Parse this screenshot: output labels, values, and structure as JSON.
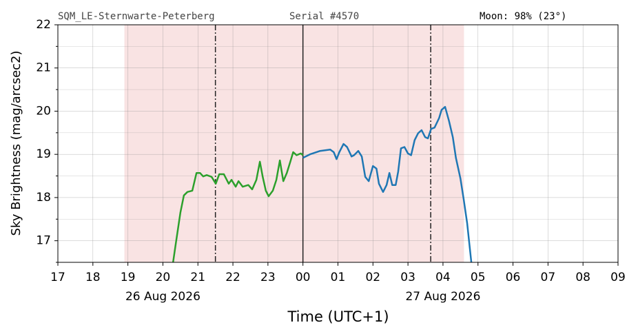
{
  "chart_data": {
    "type": "line",
    "header_left": "SQM_LE-Sternwarte-Peterberg",
    "header_center": "Serial #4570",
    "header_right": "Moon: 98% (23°)",
    "ylabel": "Sky Brightness (mag/arcsec2)",
    "xlabel": "Time (UTC+1)",
    "xlim": [
      17,
      33
    ],
    "ylim": [
      16.5,
      22
    ],
    "xticks": [
      17,
      18,
      19,
      20,
      21,
      22,
      23,
      {
        "value": 24,
        "label": "00"
      },
      {
        "value": 25,
        "label": "01"
      },
      {
        "value": 26,
        "label": "02"
      },
      {
        "value": 27,
        "label": "03"
      },
      {
        "value": 28,
        "label": "04"
      },
      {
        "value": 29,
        "label": "05"
      },
      {
        "value": 30,
        "label": "06"
      },
      {
        "value": 31,
        "label": "07"
      },
      {
        "value": 32,
        "label": "08"
      },
      {
        "value": 33,
        "label": "09"
      }
    ],
    "yticks": [
      17,
      18,
      19,
      20,
      21,
      22
    ],
    "yminor_ticks": [
      16.5,
      17.5,
      18.5,
      19.5,
      20.5,
      21.5
    ],
    "date_labels": [
      {
        "x": 20,
        "text": "26 Aug 2026"
      },
      {
        "x": 28,
        "text": "27 Aug 2026"
      }
    ],
    "grid": true,
    "shaded_region": [
      18.9,
      28.6
    ],
    "shade_color": "#f9e3e3",
    "dashdot_lines": [
      21.5,
      27.65
    ],
    "solid_lines": [
      24
    ],
    "series": [
      {
        "color": "#2ca02c",
        "x": [
          20.29,
          20.37,
          20.5,
          20.6,
          20.7,
          20.84,
          20.96,
          21.06,
          21.15,
          21.25,
          21.39,
          21.51,
          21.61,
          21.74,
          21.88,
          21.96,
          22.08,
          22.16,
          22.28,
          22.44,
          22.55,
          22.67,
          22.77,
          22.85,
          22.94,
          23.02,
          23.14,
          23.24,
          23.34,
          23.44,
          23.54,
          23.64,
          23.72,
          23.82,
          23.94,
          24.0
        ],
        "values": [
          16.5,
          16.94,
          17.65,
          18.05,
          18.13,
          18.16,
          18.57,
          18.57,
          18.49,
          18.52,
          18.48,
          18.32,
          18.54,
          18.54,
          18.32,
          18.41,
          18.25,
          18.38,
          18.25,
          18.29,
          18.19,
          18.41,
          18.83,
          18.48,
          18.16,
          18.03,
          18.16,
          18.41,
          18.86,
          18.38,
          18.57,
          18.83,
          19.05,
          18.98,
          19.02,
          18.98
        ]
      },
      {
        "color": "#1f77b4",
        "x": [
          24.0,
          24.2,
          24.49,
          24.78,
          24.88,
          24.96,
          25.04,
          25.16,
          25.26,
          25.39,
          25.46,
          25.58,
          25.68,
          25.78,
          25.88,
          26.0,
          26.1,
          26.17,
          26.29,
          26.39,
          26.47,
          26.55,
          26.65,
          26.72,
          26.8,
          26.9,
          27.0,
          27.09,
          27.19,
          27.29,
          27.39,
          27.49,
          27.57,
          27.66,
          27.76,
          27.89,
          27.96,
          28.06,
          28.17,
          28.28,
          28.37,
          28.5,
          28.59,
          28.69,
          28.81
        ],
        "values": [
          18.92,
          19.0,
          19.08,
          19.11,
          19.05,
          18.89,
          19.05,
          19.24,
          19.17,
          18.95,
          18.98,
          19.08,
          18.95,
          18.48,
          18.38,
          18.73,
          18.67,
          18.32,
          18.13,
          18.29,
          18.57,
          18.29,
          18.29,
          18.6,
          19.14,
          19.17,
          19.02,
          18.98,
          19.33,
          19.49,
          19.56,
          19.4,
          19.37,
          19.59,
          19.62,
          19.84,
          20.03,
          20.1,
          19.78,
          19.4,
          18.92,
          18.44,
          17.97,
          17.41,
          16.5
        ]
      }
    ]
  }
}
